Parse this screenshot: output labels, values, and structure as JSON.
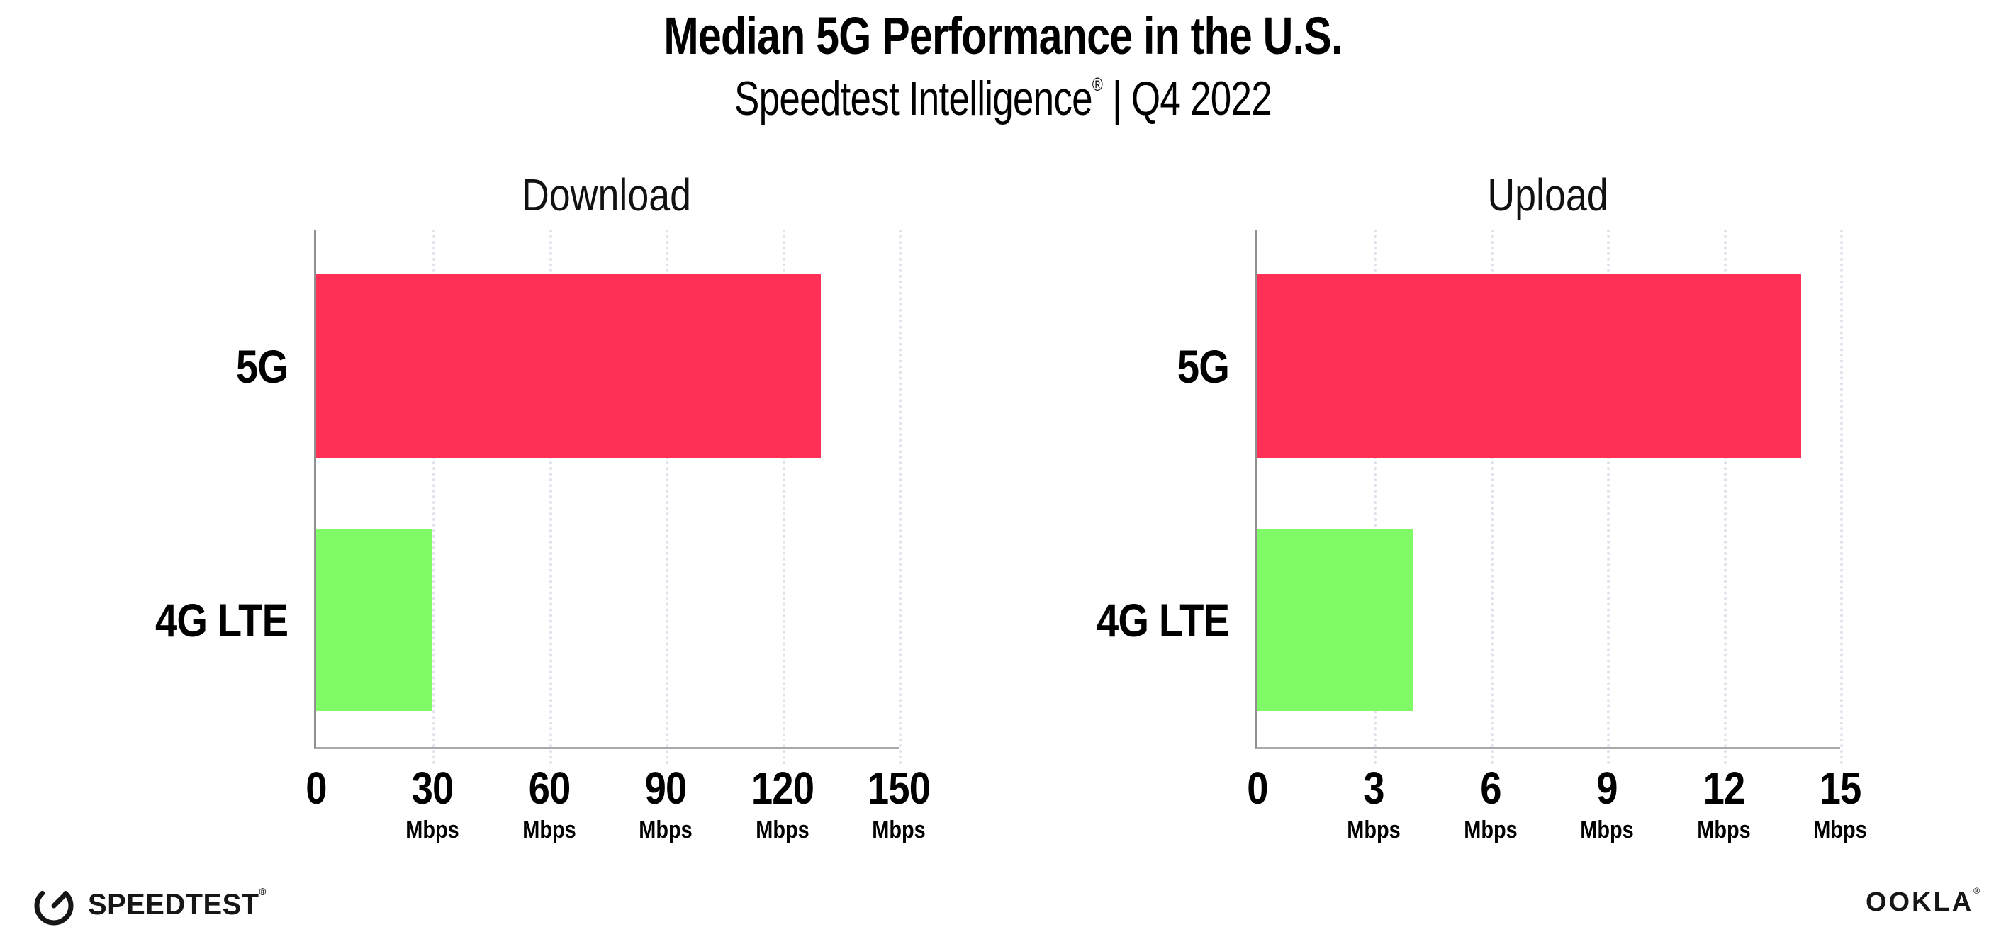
{
  "page": {
    "title": "Median 5G Performance in the U.S.",
    "subtitle_brand": "Speedtest Intelligence",
    "subtitle_reg": "®",
    "subtitle_rest": " | Q4 2022"
  },
  "colors": {
    "bar_5g": "#FF2F56",
    "bar_4g_lte": "#80FA66",
    "gridline": "#E1E1EC",
    "axis": "#909090",
    "text": "#000000",
    "logo": "#161616"
  },
  "chart_data": [
    {
      "type": "bar",
      "orientation": "horizontal",
      "title": "Download",
      "categories": [
        "5G",
        "4G LTE"
      ],
      "values": [
        130,
        30
      ],
      "unit": "Mbps",
      "xlim": [
        0,
        150
      ],
      "xticks": [
        0,
        30,
        60,
        90,
        120,
        150
      ],
      "bar_colors": [
        "#FF2F56",
        "#80FA66"
      ],
      "grid": "vertical dotted at each tick",
      "legend": "none",
      "data_labels": "none"
    },
    {
      "type": "bar",
      "orientation": "horizontal",
      "title": "Upload",
      "categories": [
        "5G",
        "4G LTE"
      ],
      "values": [
        14,
        4
      ],
      "unit": "Mbps",
      "xlim": [
        0,
        15
      ],
      "xticks": [
        0,
        3,
        6,
        9,
        12,
        15
      ],
      "bar_colors": [
        "#FF2F56",
        "#80FA66"
      ],
      "grid": "vertical dotted at each tick",
      "legend": "none",
      "data_labels": "none"
    }
  ],
  "footer": {
    "speedtest_label": "SPEEDTEST",
    "speedtest_mark": "®",
    "ookla_label": "OOKLA",
    "ookla_mark": "®"
  }
}
